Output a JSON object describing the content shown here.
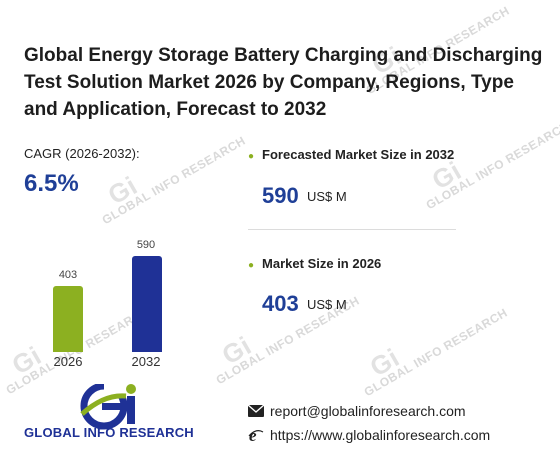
{
  "title": "Global Energy Storage Battery Charging and Discharging Test Solution Market 2026 by Company, Regions, Type and Application, Forecast to 2032",
  "cagr": {
    "label": "CAGR (2026-2032):",
    "value": "6.5%"
  },
  "chart_data": {
    "type": "bar",
    "categories": [
      "2026",
      "2032"
    ],
    "values": [
      403,
      590
    ],
    "colors": [
      "#8cb021",
      "#1f3196"
    ]
  },
  "stats": [
    {
      "label": "Forecasted Market Size in 2032",
      "value": "590",
      "unit": "US$ M"
    },
    {
      "label": "Market Size in 2026",
      "value": "403",
      "unit": "US$ M"
    }
  ],
  "brand": {
    "name": "GLOBAL INFO RESEARCH",
    "watermark": "GLOBAL INFO RESEARCH"
  },
  "contact": {
    "email": "report@globalinforesearch.com",
    "website": "https://www.globalinforesearch.com"
  },
  "icons": {
    "email": "envelope-icon",
    "website": "ie-globe-icon",
    "bullet": "bullet-dot-icon"
  },
  "colors": {
    "accent_blue": "#1f3f97",
    "accent_green": "#8cb021"
  }
}
